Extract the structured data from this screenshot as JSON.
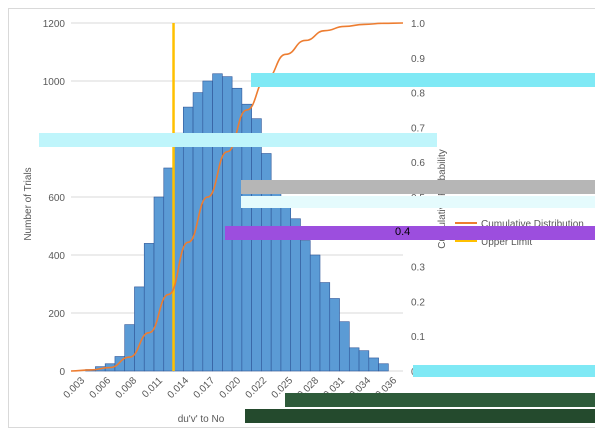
{
  "chart_data": {
    "type": "bar",
    "bin_width": 0.001,
    "x_ticks": [
      "0.003",
      "0.006",
      "0.008",
      "0.011",
      "0.014",
      "0.017",
      "0.020",
      "0.022",
      "0.025",
      "0.028",
      "0.031",
      "0.034",
      "0.036"
    ],
    "xlabel": "du'v' to No",
    "ylabel": "Number of Trials",
    "y2label": "Cumulative Probability",
    "ylim": [
      0,
      1200
    ],
    "y_ticks": [
      0,
      200,
      400,
      600,
      800,
      1000,
      1200
    ],
    "y2lim": [
      0,
      1.0
    ],
    "y2_ticks": [
      "0",
      "0.1",
      "0.2",
      "0.3",
      "0.4",
      "0.5",
      "0.6",
      "0.7",
      "0.8",
      "0.9",
      "1.0"
    ],
    "grid": true,
    "bars": {
      "x_start": [
        0.0035,
        0.0045,
        0.0055,
        0.0065,
        0.0075,
        0.0085,
        0.0095,
        0.0105,
        0.0115,
        0.0125,
        0.0135,
        0.0145,
        0.0155,
        0.0165,
        0.0175,
        0.0185,
        0.0195,
        0.0205,
        0.0215,
        0.0225,
        0.0235,
        0.0245,
        0.0255,
        0.0265,
        0.0275,
        0.0285,
        0.0295,
        0.0305,
        0.0315,
        0.0325,
        0.0335,
        0.0345
      ],
      "values": [
        0,
        5,
        15,
        25,
        50,
        160,
        290,
        440,
        600,
        700,
        820,
        910,
        960,
        1000,
        1025,
        1015,
        975,
        920,
        870,
        750,
        645,
        570,
        525,
        450,
        400,
        305,
        250,
        170,
        80,
        70,
        45,
        25
      ]
    },
    "series": [
      {
        "name": "Cumulative Distribution",
        "type": "line",
        "color": "#ed7d31",
        "x": [
          0.003,
          0.005,
          0.007,
          0.009,
          0.011,
          0.013,
          0.015,
          0.017,
          0.019,
          0.021,
          0.023,
          0.025,
          0.027,
          0.029,
          0.031,
          0.033,
          0.035,
          0.037
        ],
        "y": [
          0.0,
          0.003,
          0.01,
          0.04,
          0.11,
          0.22,
          0.37,
          0.5,
          0.63,
          0.75,
          0.84,
          0.91,
          0.95,
          0.978,
          0.99,
          0.996,
          0.999,
          1.0
        ]
      },
      {
        "name": "Upper Limit",
        "type": "vline",
        "color": "#ffc000",
        "x": 0.0135
      }
    ],
    "bar_color": "#5b9bd5",
    "visible_fragment_text": "0.4"
  }
}
